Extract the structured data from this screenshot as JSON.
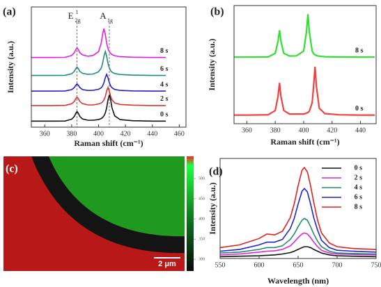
{
  "chart_data": [
    {
      "type": "line",
      "panel_label": "(a)",
      "xlabel": "Raman shift (cm⁻¹)",
      "ylabel": "Intensity (a.u.)",
      "xlim": [
        350,
        465
      ],
      "ylim": [
        0,
        100
      ],
      "xticks": [
        360,
        380,
        400,
        420,
        440,
        460
      ],
      "x": [
        350,
        365,
        375,
        380,
        382,
        383,
        384,
        385,
        386,
        388,
        392,
        396,
        400,
        402,
        403,
        404,
        405,
        406,
        407,
        408,
        409,
        410,
        412,
        416,
        425,
        440,
        450
      ],
      "series": [
        {
          "name": "8 s",
          "color": "#e020e0",
          "values": [
            58,
            58,
            58.1,
            59.6,
            62,
            64.4,
            66,
            64.4,
            62,
            60.2,
            59,
            59.7,
            62.8,
            70,
            77.2,
            82,
            77.2,
            70,
            65.4,
            62.8,
            61.4,
            60.4,
            59.5,
            58.6,
            58.2,
            58,
            58
          ]
        },
        {
          "name": "6 s",
          "color": "#208a80",
          "values": [
            43,
            43,
            43.1,
            44.4,
            46.5,
            48.6,
            50,
            48.6,
            46.5,
            44.8,
            44,
            44.2,
            46,
            49.2,
            53,
            59,
            63,
            59,
            53,
            49.2,
            47,
            45.8,
            44.6,
            43.8,
            43.3,
            43,
            43
          ]
        },
        {
          "name": "4 s",
          "color": "#2020c0",
          "values": [
            30,
            30,
            30.1,
            31.2,
            33,
            34.8,
            36,
            34.8,
            33,
            31.3,
            30.5,
            30.7,
            31.5,
            32.8,
            34.3,
            37,
            41.2,
            44,
            41.2,
            37,
            34.3,
            32.8,
            31.4,
            30.6,
            30.2,
            30,
            30
          ]
        },
        {
          "name": "2 s",
          "color": "#e03030",
          "values": [
            18,
            18,
            18.1,
            19.4,
            21.5,
            23.6,
            25,
            23.6,
            21.5,
            19.6,
            18.5,
            18.5,
            19.3,
            20.1,
            21,
            22.7,
            25.5,
            30,
            33,
            30,
            25.5,
            22.7,
            20.1,
            18.9,
            18.3,
            18,
            18
          ]
        },
        {
          "name": "0 s",
          "color": "#111111",
          "values": [
            5,
            5,
            5.1,
            6.6,
            9,
            11.4,
            13,
            11.4,
            9,
            6.8,
            5.8,
            5.8,
            6.3,
            7.2,
            8.1,
            9.4,
            11.8,
            16,
            22.6,
            27,
            22.6,
            16,
            9.4,
            6.3,
            5.4,
            5,
            5
          ]
        }
      ],
      "annotations": [
        {
          "label": "E",
          "subscript": "2g",
          "superscript": "1",
          "x": 384
        },
        {
          "label": "A",
          "subscript": "1g",
          "x": 408
        }
      ]
    },
    {
      "type": "line",
      "panel_label": "(b)",
      "xlabel": "Raman shift (cm⁻¹)",
      "ylabel": "Intensity (a.u.)",
      "xlim": [
        351,
        451
      ],
      "ylim": [
        0,
        110
      ],
      "xticks": [
        360,
        380,
        400,
        420,
        440
      ],
      "x": [
        345,
        360,
        375,
        380,
        382,
        383,
        384,
        386,
        390,
        395,
        400,
        402,
        403,
        404,
        406,
        407,
        408,
        409,
        411,
        415,
        425,
        440,
        450
      ],
      "series": [
        {
          "name": "8 s",
          "color": "#30e030",
          "values": [
            62,
            62,
            62.2,
            65.5,
            76.8,
            87,
            76.8,
            65.6,
            63,
            63.2,
            67.7,
            85.6,
            102,
            85.6,
            67.6,
            65.2,
            64.2,
            63.5,
            62.9,
            62.4,
            62.1,
            62,
            62
          ]
        },
        {
          "name": "0 s",
          "color": "#f04040",
          "values": [
            8,
            8,
            8.3,
            12.2,
            25.7,
            38,
            25.7,
            12.3,
            9,
            9,
            9,
            9.8,
            10.5,
            11.6,
            19.7,
            34.6,
            53,
            34.6,
            14.3,
            9.4,
            8.3,
            8,
            8
          ]
        }
      ]
    },
    {
      "type": "image",
      "panel_label": "(c)",
      "scale_bar": "2 μm",
      "colorbar": {
        "lim": [
          271,
          555
        ],
        "ticks": [
          300,
          350,
          400,
          450,
          500
        ]
      }
    },
    {
      "type": "line",
      "panel_label": "(d)",
      "xlabel": "Wavelength (nm)",
      "ylabel": "Intensity (a.u.)",
      "xlim": [
        550,
        750
      ],
      "ylim": [
        0,
        110
      ],
      "xticks": [
        550,
        600,
        650,
        700,
        750
      ],
      "legend": "upper right",
      "x": [
        550,
        575,
        600,
        610,
        620,
        630,
        640,
        645,
        650,
        655,
        658,
        662,
        666,
        670,
        675,
        680,
        690,
        700,
        720,
        750
      ],
      "series": [
        {
          "name": "0 s",
          "color": "#111111",
          "values": [
            2,
            2.5,
            3,
            3.5,
            4,
            5,
            6.5,
            8,
            10,
            12,
            13,
            13,
            12,
            10,
            8,
            6,
            4,
            3,
            2.5,
            2
          ]
        },
        {
          "name": "2 s",
          "color": "#e020e0",
          "values": [
            4,
            5,
            7,
            8,
            8.5,
            10,
            14,
            18,
            23,
            27,
            28,
            27,
            23,
            18,
            13,
            9,
            6,
            5,
            4.5,
            4
          ]
        },
        {
          "name": "4 s",
          "color": "#208a70",
          "values": [
            6,
            7,
            10,
            12,
            12,
            14,
            21,
            27,
            35,
            42,
            44,
            42,
            35,
            27,
            19,
            13,
            8,
            6,
            5.5,
            5
          ]
        },
        {
          "name": "6 s",
          "color": "#2020d0",
          "values": [
            8,
            10,
            15,
            18,
            18,
            21,
            33,
            44,
            60,
            74,
            77,
            73,
            60,
            45,
            31,
            20,
            12,
            9,
            8,
            7
          ]
        },
        {
          "name": "8 s",
          "color": "#e02020",
          "values": [
            12,
            15,
            22,
            27,
            26,
            30,
            45,
            60,
            80,
            97,
            100,
            95,
            80,
            62,
            42,
            28,
            17,
            13,
            11,
            10
          ]
        }
      ]
    }
  ]
}
